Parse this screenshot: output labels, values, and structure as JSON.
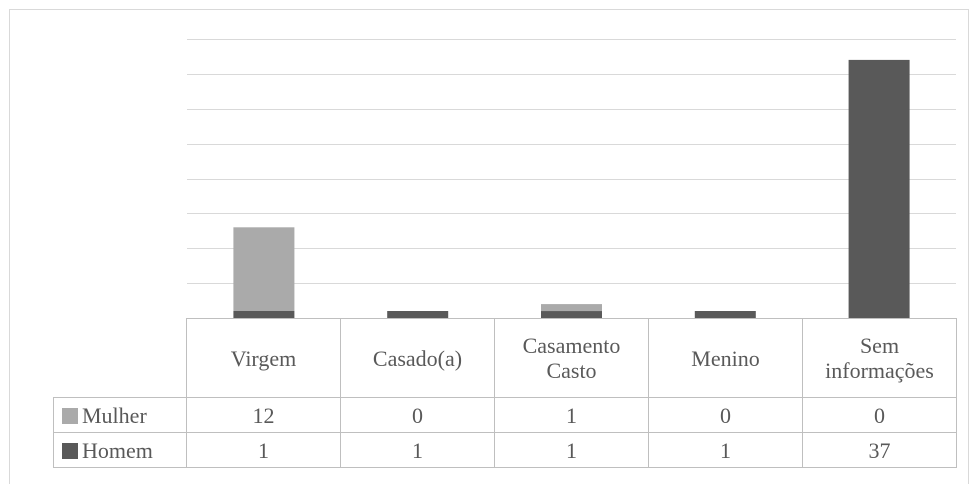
{
  "chart_data": {
    "type": "bar",
    "stacked": true,
    "categories": [
      "Virgem",
      "Casado(a)",
      "Casamento Casto",
      "Menino",
      "Sem informações"
    ],
    "series": [
      {
        "name": "Homem",
        "values": [
          1,
          1,
          1,
          1,
          37
        ],
        "color": "#595959"
      },
      {
        "name": "Mulher",
        "values": [
          12,
          0,
          1,
          0,
          0
        ],
        "color": "#aaaaaa"
      }
    ],
    "table_rows": [
      {
        "name": "Mulher",
        "color": "#aaaaaa",
        "values": [
          "12",
          "0",
          "1",
          "0",
          "0"
        ]
      },
      {
        "name": "Homem",
        "color": "#595959",
        "values": [
          "1",
          "1",
          "1",
          "1",
          "37"
        ]
      }
    ],
    "ylim": [
      0,
      40
    ],
    "grid": true,
    "legend": "data-table",
    "gridline_color": "#d9d9d9"
  }
}
